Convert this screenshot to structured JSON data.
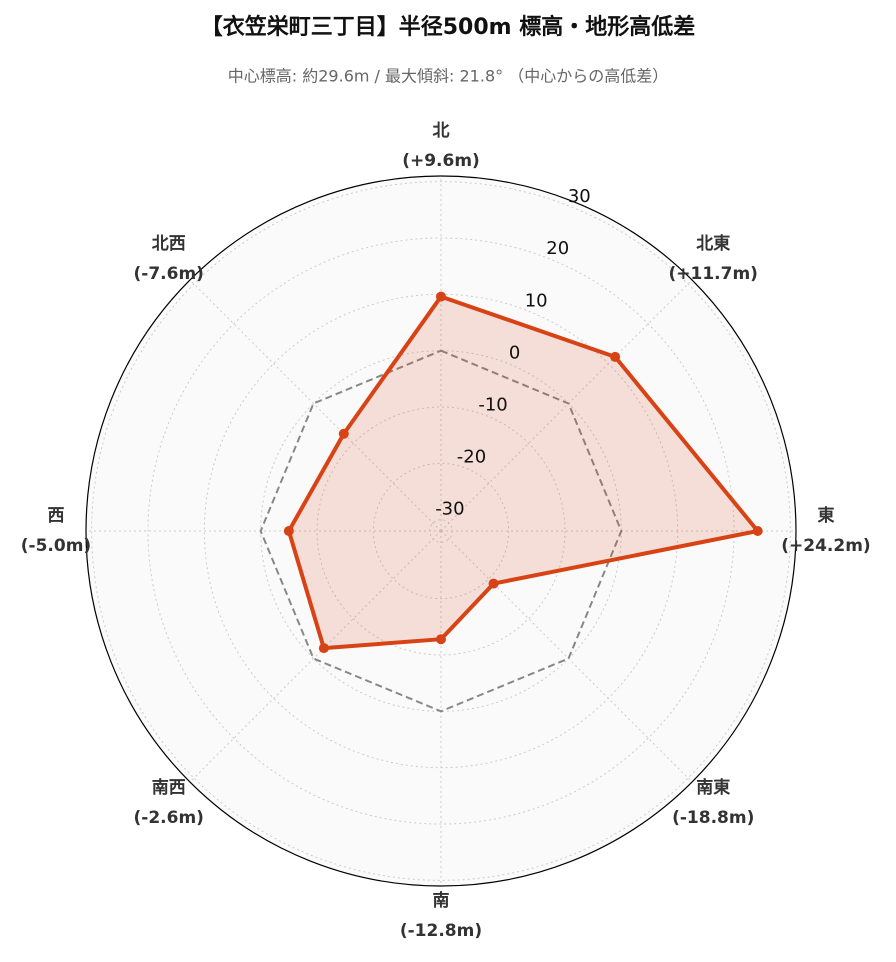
{
  "chart_data": {
    "type": "radar",
    "title": "【衣笠栄町三丁目】半径500m 標高・地形高低差",
    "subtitle": "中心標高: 約29.6m / 最大傾斜: 21.8° （中心からの高低差）",
    "categories": [
      "北",
      "北東",
      "東",
      "南東",
      "南",
      "南西",
      "西",
      "北西"
    ],
    "values": [
      9.6,
      11.7,
      24.2,
      -18.8,
      -12.8,
      -2.6,
      -5.0,
      -7.6
    ],
    "value_labels": [
      "(+9.6m)",
      "(+11.7m)",
      "(+24.2m)",
      "(-18.8m)",
      "(-12.8m)",
      "(-2.6m)",
      "(-5.0m)",
      "(-7.6m)"
    ],
    "color": "#d84315",
    "reference_value": 0,
    "ylim": [
      -32,
      31
    ],
    "yticks": [
      -30,
      -20,
      -10,
      0,
      10,
      20,
      30
    ],
    "grid": true
  }
}
